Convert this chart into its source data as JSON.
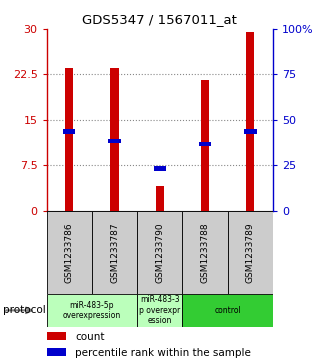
{
  "title": "GDS5347 / 1567011_at",
  "samples": [
    "GSM1233786",
    "GSM1233787",
    "GSM1233790",
    "GSM1233788",
    "GSM1233789"
  ],
  "count_values": [
    23.5,
    23.5,
    4.0,
    21.5,
    29.5
  ],
  "percentile_values": [
    13.0,
    11.5,
    7.0,
    11.0,
    13.0
  ],
  "ylim_left": [
    0,
    30
  ],
  "ylim_right": [
    0,
    100
  ],
  "yticks_left": [
    0,
    7.5,
    15,
    22.5,
    30
  ],
  "yticks_right": [
    0,
    25,
    50,
    75,
    100
  ],
  "ytick_labels_left": [
    "0",
    "7.5",
    "15",
    "22.5",
    "30"
  ],
  "ytick_labels_right": [
    "0",
    "25",
    "50",
    "75",
    "100%"
  ],
  "bar_width": 0.18,
  "count_color": "#CC0000",
  "percentile_color": "#0000CC",
  "grid_color": "#888888",
  "sample_bg_color": "#cccccc",
  "group_defs": [
    [
      0,
      1,
      "miR-483-5p\noverexpression",
      "#bbffbb"
    ],
    [
      2,
      2,
      "miR-483-3\np overexpr\nession",
      "#bbffbb"
    ],
    [
      3,
      4,
      "control",
      "#33cc33"
    ]
  ],
  "legend_count_label": "count",
  "legend_percentile_label": "percentile rank within the sample",
  "fig_width": 3.33,
  "fig_height": 3.63,
  "dpi": 100
}
